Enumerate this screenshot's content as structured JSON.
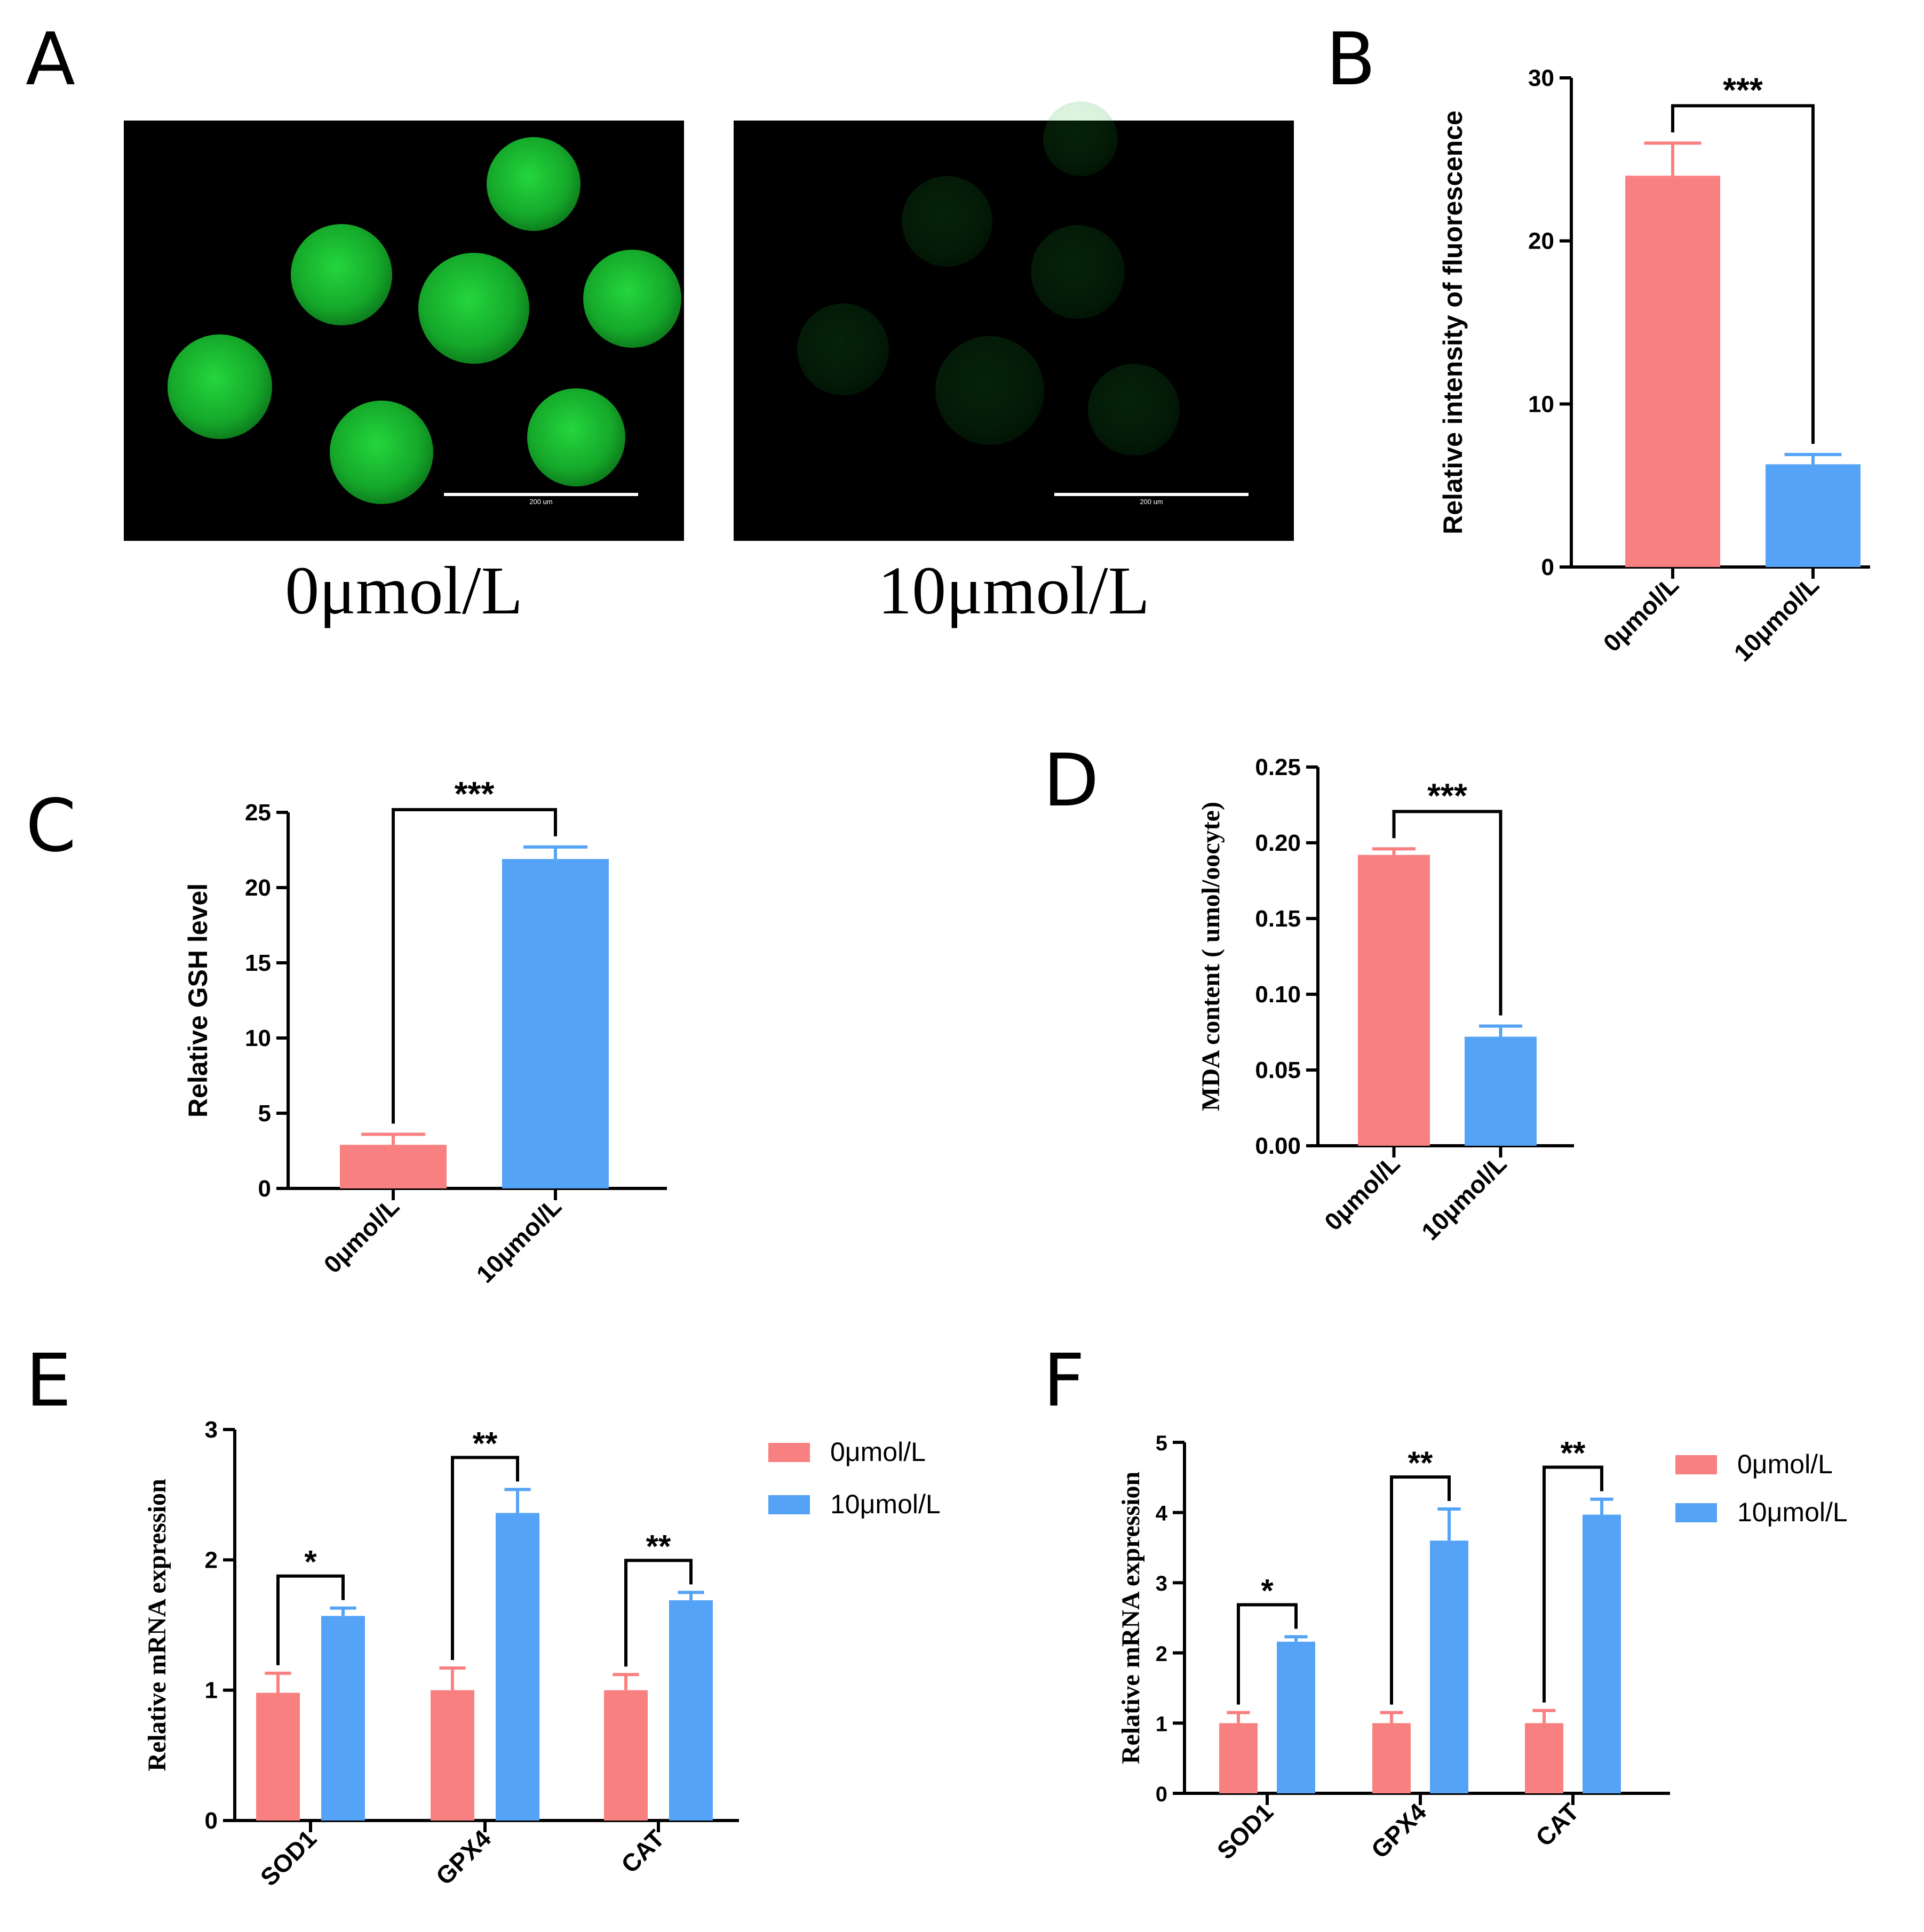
{
  "colors": {
    "control": "#f98080",
    "treated": "#55a3f6",
    "fluor": "#1fc436"
  },
  "panels": {
    "A": {
      "letter": "A",
      "images": [
        {
          "caption": "0μmol/L",
          "scale_text": "200 um",
          "brightness": 1.0
        },
        {
          "caption": "10μmol/L",
          "scale_text": "200 um",
          "brightness": 0.16
        }
      ]
    },
    "B": {
      "letter": "B"
    },
    "C": {
      "letter": "C"
    },
    "D": {
      "letter": "D"
    },
    "E": {
      "letter": "E"
    },
    "F": {
      "letter": "F"
    }
  },
  "chart_data": [
    {
      "panel": "B",
      "type": "bar",
      "categories": [
        "0μmol/L",
        "10μmol/L"
      ],
      "values": [
        24,
        6.3
      ],
      "errors": [
        2.0,
        0.6
      ],
      "ylabel": "Relative intensity of fluorescence",
      "ylim": [
        0,
        30
      ],
      "yticks": [
        "0",
        "10",
        "20",
        "30"
      ],
      "significance": [
        {
          "between": [
            0,
            1
          ],
          "text": "***"
        }
      ]
    },
    {
      "panel": "C",
      "type": "bar",
      "categories": [
        "0μmol/L",
        "10μmol/L"
      ],
      "values": [
        2.9,
        21.9
      ],
      "errors": [
        0.7,
        0.8
      ],
      "ylabel": "Relative GSH level",
      "ylim": [
        0,
        25
      ],
      "yticks": [
        "0",
        "5",
        "10",
        "15",
        "20",
        "25"
      ],
      "significance": [
        {
          "between": [
            0,
            1
          ],
          "text": "***"
        }
      ]
    },
    {
      "panel": "D",
      "type": "bar",
      "categories": [
        "0μmol/L",
        "10μmol/L"
      ],
      "values": [
        0.192,
        0.072
      ],
      "errors": [
        0.004,
        0.007
      ],
      "ylabel": "MDA content ( umol/oocyte)",
      "ylim": [
        0,
        0.25
      ],
      "yticks": [
        "0.00",
        "0.05",
        "0.10",
        "0.15",
        "0.20",
        "0.25"
      ],
      "significance": [
        {
          "between": [
            0,
            1
          ],
          "text": "***"
        }
      ]
    },
    {
      "panel": "E",
      "type": "bar",
      "categories": [
        "SOD1",
        "GPX4",
        "CAT"
      ],
      "series": [
        {
          "name": "0μmol/L",
          "values": [
            0.98,
            1.0,
            1.0
          ],
          "errors": [
            0.15,
            0.17,
            0.12
          ]
        },
        {
          "name": "10μmol/L",
          "values": [
            1.57,
            2.36,
            1.69
          ],
          "errors": [
            0.06,
            0.18,
            0.06
          ]
        }
      ],
      "ylabel": "Relative mRNA expression",
      "ylim": [
        0,
        3
      ],
      "yticks": [
        "0",
        "1",
        "2",
        "3"
      ],
      "significance": [
        "*",
        "**",
        "**"
      ],
      "legend": "right"
    },
    {
      "panel": "F",
      "type": "bar",
      "categories": [
        "SOD1",
        "GPX4",
        "CAT"
      ],
      "series": [
        {
          "name": "0μmol/L",
          "values": [
            1.0,
            1.0,
            1.0
          ],
          "errors": [
            0.15,
            0.15,
            0.18
          ]
        },
        {
          "name": "10μmol/L",
          "values": [
            2.16,
            3.6,
            3.97
          ],
          "errors": [
            0.07,
            0.45,
            0.22
          ]
        }
      ],
      "ylabel": "Relative mRNA expression",
      "ylim": [
        0,
        5
      ],
      "yticks": [
        "0",
        "1",
        "2",
        "3",
        "4",
        "5"
      ],
      "significance": [
        "*",
        "**",
        "**"
      ],
      "legend": "right"
    }
  ]
}
